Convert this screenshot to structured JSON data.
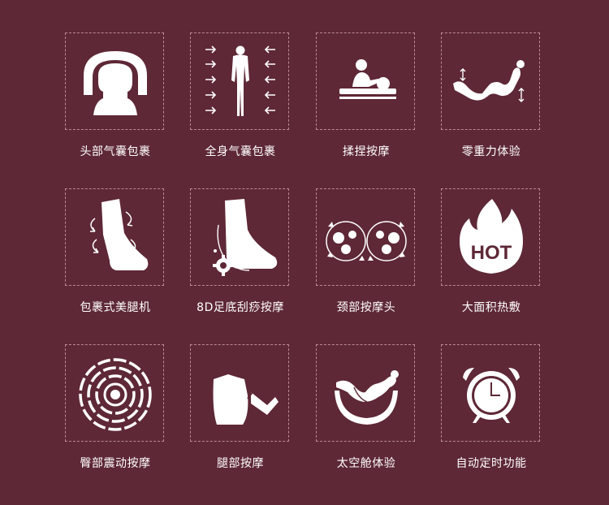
{
  "features": [
    {
      "icon": "head-airbag-icon",
      "label": "头部气囊包裹"
    },
    {
      "icon": "full-body-airbag-icon",
      "label": "全身气囊包裹"
    },
    {
      "icon": "kneading-massage-icon",
      "label": "揉捏按摩"
    },
    {
      "icon": "zero-gravity-icon",
      "label": "零重力体验"
    },
    {
      "icon": "leg-wrap-icon",
      "label": "包裹式美腿机"
    },
    {
      "icon": "foot-scraping-icon",
      "label": "8D足底刮痧按摩"
    },
    {
      "icon": "neck-massage-head-icon",
      "label": "颈部按摩头"
    },
    {
      "icon": "hot-flame-icon",
      "label": "大面积热敷",
      "icon_text": "HOT"
    },
    {
      "icon": "vibration-rings-icon",
      "label": "臀部震动按摩"
    },
    {
      "icon": "leg-massage-icon",
      "label": "腿部按摩"
    },
    {
      "icon": "space-capsule-icon",
      "label": "太空舱体验"
    },
    {
      "icon": "alarm-clock-icon",
      "label": "自动定时功能"
    }
  ]
}
